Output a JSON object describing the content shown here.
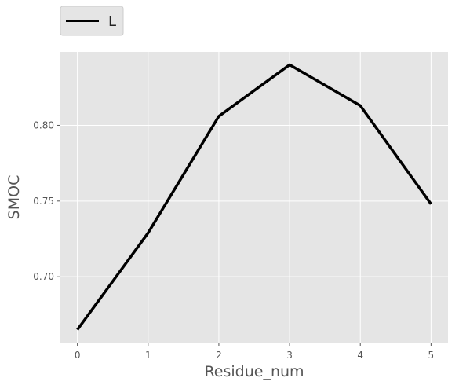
{
  "chart_data": {
    "type": "line",
    "xlabel": "Residue_num",
    "ylabel": "SMOC",
    "x": [
      0,
      1,
      2,
      3,
      4,
      5
    ],
    "series": [
      {
        "name": "L",
        "color": "#000000",
        "values": [
          0.665,
          0.729,
          0.806,
          0.84,
          0.813,
          0.748
        ]
      }
    ],
    "xticks": [
      "0",
      "1",
      "2",
      "3",
      "4",
      "5"
    ],
    "yticks": [
      "0.70",
      "0.75",
      "0.80"
    ],
    "xlim": [
      -0.24,
      5.24
    ],
    "ylim": [
      0.6565,
      0.8485
    ],
    "grid": true,
    "legend_position": "top-left, outside above plot",
    "colors": {
      "plot_background": "#e5e5e5",
      "grid": "#ffffff",
      "text": "#555555"
    }
  }
}
